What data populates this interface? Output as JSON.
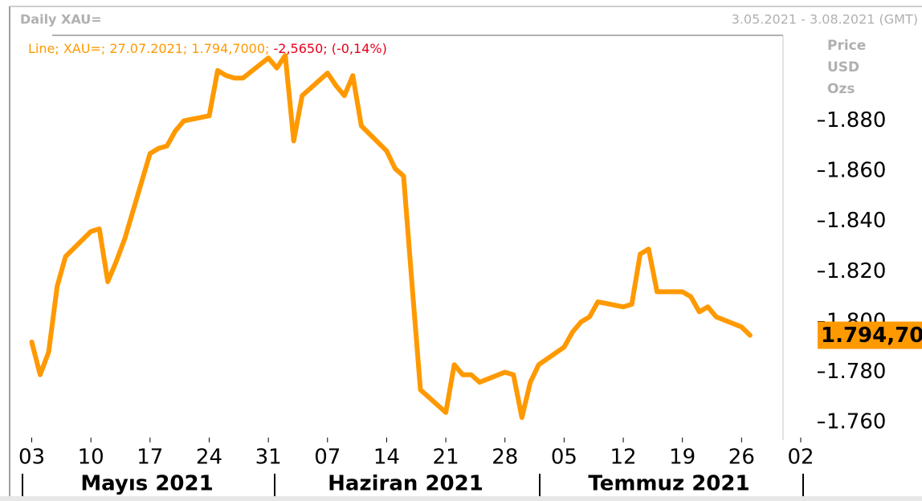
{
  "chart_data": {
    "type": "line",
    "title": "Daily XAU=",
    "date_range": "3.05.2021 - 3.08.2021 (GMT)",
    "legend": {
      "name": "Line; XAU=; 27.07.2021; 1.794,7000;",
      "change": "-2,5650; (-0,14%)"
    },
    "y_axis_label": [
      "Price",
      "USD",
      "Ozs"
    ],
    "last_value_label": "1.794,70",
    "month_labels": [
      "Mayıs 2021",
      "Haziran 2021",
      "Temmuz 2021"
    ],
    "x": [
      "2021-05-03",
      "2021-05-04",
      "2021-05-05",
      "2021-05-06",
      "2021-05-07",
      "2021-05-10",
      "2021-05-11",
      "2021-05-12",
      "2021-05-13",
      "2021-05-14",
      "2021-05-17",
      "2021-05-18",
      "2021-05-19",
      "2021-05-20",
      "2021-05-21",
      "2021-05-24",
      "2021-05-25",
      "2021-05-26",
      "2021-05-27",
      "2021-05-28",
      "2021-05-31",
      "2021-06-01",
      "2021-06-02",
      "2021-06-03",
      "2021-06-04",
      "2021-06-07",
      "2021-06-08",
      "2021-06-09",
      "2021-06-10",
      "2021-06-11",
      "2021-06-14",
      "2021-06-15",
      "2021-06-16",
      "2021-06-17",
      "2021-06-18",
      "2021-06-21",
      "2021-06-22",
      "2021-06-23",
      "2021-06-24",
      "2021-06-25",
      "2021-06-28",
      "2021-06-29",
      "2021-06-30",
      "2021-07-01",
      "2021-07-02",
      "2021-07-05",
      "2021-07-06",
      "2021-07-07",
      "2021-07-08",
      "2021-07-09",
      "2021-07-12",
      "2021-07-13",
      "2021-07-14",
      "2021-07-15",
      "2021-07-16",
      "2021-07-19",
      "2021-07-20",
      "2021-07-21",
      "2021-07-22",
      "2021-07-23",
      "2021-07-26",
      "2021-07-27"
    ],
    "series": [
      {
        "name": "XAU=",
        "color": "#ff9900",
        "values": [
          1792,
          1779,
          1788,
          1814,
          1826,
          1836,
          1837,
          1816,
          1824,
          1833,
          1867,
          1869,
          1870,
          1876,
          1880,
          1882,
          1900,
          1898,
          1897,
          1897,
          1905,
          1901,
          1906,
          1872,
          1890,
          1899,
          1894,
          1890,
          1898,
          1878,
          1868,
          1861,
          1858,
          1815,
          1773,
          1764,
          1783,
          1779,
          1779,
          1776,
          1780,
          1779,
          1762,
          1776,
          1783,
          1790,
          1796,
          1800,
          1802,
          1808,
          1806,
          1807,
          1827,
          1829,
          1812,
          1812,
          1810,
          1804,
          1806,
          1802,
          1798,
          1794.7
        ]
      }
    ],
    "xlim": [
      "2021-05-02",
      "2021-08-02"
    ],
    "xticks": [
      {
        "value": "2021-05-03",
        "label": "03"
      },
      {
        "value": "2021-05-10",
        "label": "10"
      },
      {
        "value": "2021-05-17",
        "label": "17"
      },
      {
        "value": "2021-05-24",
        "label": "24"
      },
      {
        "value": "2021-05-31",
        "label": "31"
      },
      {
        "value": "2021-06-07",
        "label": "07"
      },
      {
        "value": "2021-06-14",
        "label": "14"
      },
      {
        "value": "2021-06-21",
        "label": "21"
      },
      {
        "value": "2021-06-28",
        "label": "28"
      },
      {
        "value": "2021-07-05",
        "label": "05"
      },
      {
        "value": "2021-07-12",
        "label": "12"
      },
      {
        "value": "2021-07-19",
        "label": "19"
      },
      {
        "value": "2021-07-26",
        "label": "26"
      },
      {
        "value": "2021-08-02",
        "label": "02"
      }
    ],
    "ylim": [
      1754,
      1914
    ],
    "yticks": [
      {
        "value": 1760,
        "label": "1.760"
      },
      {
        "value": 1780,
        "label": "1.780"
      },
      {
        "value": 1800,
        "label": "1.800"
      },
      {
        "value": 1820,
        "label": "1.820"
      },
      {
        "value": 1840,
        "label": "1.840"
      },
      {
        "value": 1860,
        "label": "1.860"
      },
      {
        "value": 1880,
        "label": "1.880"
      }
    ],
    "legend_color": "#ff9900",
    "change_color": "#e8001c",
    "badge_color": "#ff9900"
  }
}
